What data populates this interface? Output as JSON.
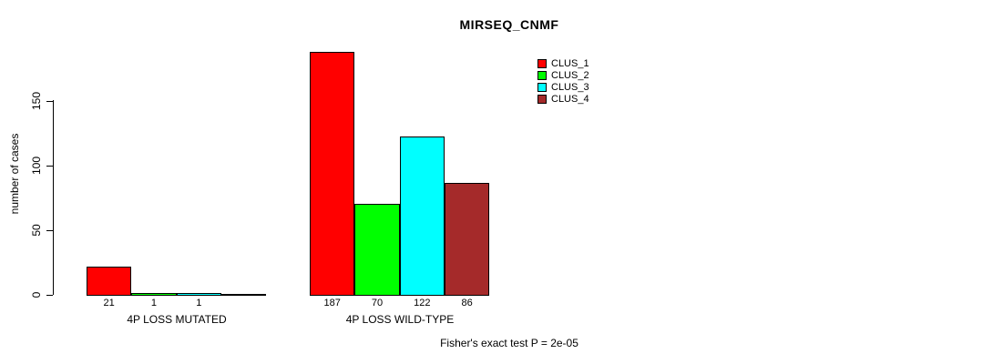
{
  "chart_data": {
    "type": "bar",
    "title": "MIRSEQ_CNMF",
    "ylabel": "number of cases",
    "xlabel": "",
    "ylim": [
      0,
      190
    ],
    "yticks": [
      0,
      50,
      100,
      150
    ],
    "grid": false,
    "legend_position": "top-right-inside",
    "categories": [
      "4P LOSS MUTATED",
      "4P LOSS WILD-TYPE"
    ],
    "series": [
      {
        "name": "CLUS_1",
        "color": "#FF0000",
        "values": [
          21,
          187
        ]
      },
      {
        "name": "CLUS_2",
        "color": "#00FF00",
        "values": [
          1,
          70
        ]
      },
      {
        "name": "CLUS_3",
        "color": "#00FFFF",
        "values": [
          1,
          122
        ]
      },
      {
        "name": "CLUS_4",
        "color": "#A52A2A",
        "values": [
          0,
          86
        ]
      }
    ],
    "bar_value_labels": [
      [
        "21",
        "1",
        "1",
        ""
      ],
      [
        "187",
        "70",
        "122",
        "86"
      ]
    ],
    "footer": "Fisher's exact test P = 2e-05"
  }
}
